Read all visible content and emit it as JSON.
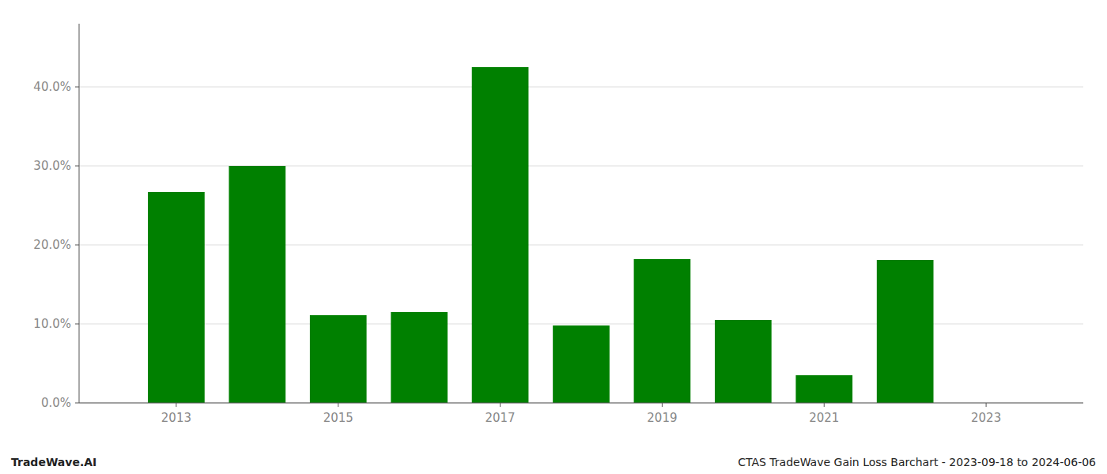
{
  "chart_data": {
    "type": "bar",
    "x": [
      2013,
      2014,
      2015,
      2016,
      2017,
      2018,
      2019,
      2020,
      2021,
      2022
    ],
    "values": [
      0.267,
      0.3,
      0.111,
      0.115,
      0.425,
      0.098,
      0.182,
      0.105,
      0.035,
      0.181
    ],
    "color": "#008000",
    "xlim": [
      2011.8,
      2024.2
    ],
    "xticks": [
      2013,
      2015,
      2017,
      2019,
      2021,
      2023
    ],
    "ylim": [
      0,
      0.48
    ],
    "yticks": [
      {
        "value": 0.0,
        "label": "0.0%"
      },
      {
        "value": 0.1,
        "label": "10.0%"
      },
      {
        "value": 0.2,
        "label": "20.0%"
      },
      {
        "value": 0.3,
        "label": "30.0%"
      },
      {
        "value": 0.4,
        "label": "40.0%"
      }
    ],
    "grid": true,
    "annotations": [
      "TradeWave.AI",
      "CTAS TradeWave Gain Loss Barchart - 2023-09-18 to 2024-06-06"
    ]
  }
}
